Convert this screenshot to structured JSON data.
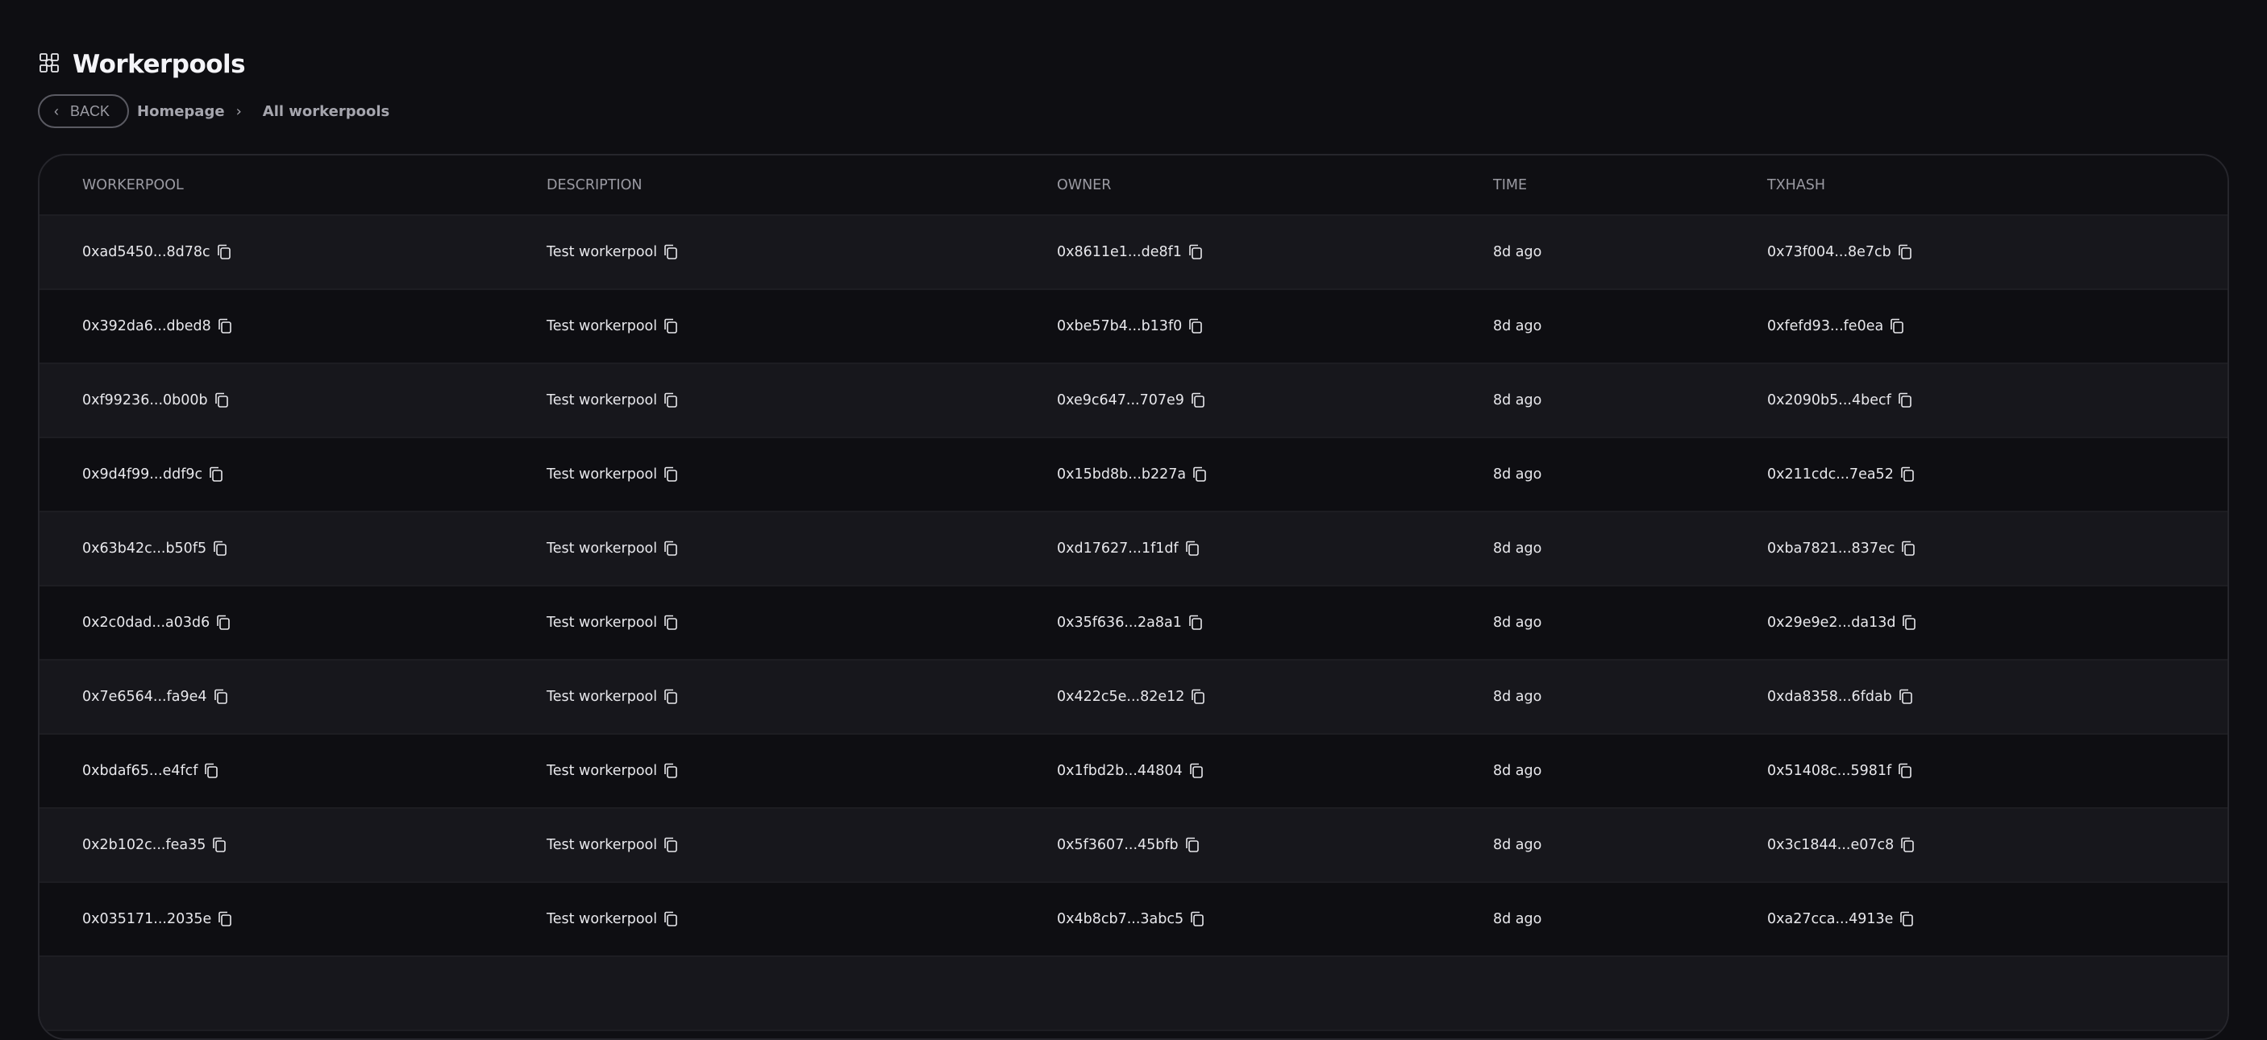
{
  "page": {
    "title": "Workerpools",
    "icon": "workerpool-icon"
  },
  "breadcrumb": {
    "back_label": "BACK",
    "items": [
      "Homepage",
      "All workerpools"
    ]
  },
  "table": {
    "columns": [
      "WORKERPOOL",
      "DESCRIPTION",
      "OWNER",
      "TIME",
      "TXHASH"
    ],
    "rows": [
      [
        "0xad5450...8d78c",
        "Test workerpool",
        "0x8611e1...de8f1",
        "8d ago",
        "0x73f004...8e7cb"
      ],
      [
        "0x392da6...dbed8",
        "Test workerpool",
        "0xbe57b4...b13f0",
        "8d ago",
        "0xfefd93...fe0ea"
      ],
      [
        "0xf99236...0b00b",
        "Test workerpool",
        "0xe9c647...707e9",
        "8d ago",
        "0x2090b5...4becf"
      ],
      [
        "0x9d4f99...ddf9c",
        "Test workerpool",
        "0x15bd8b...b227a",
        "8d ago",
        "0x211cdc...7ea52"
      ],
      [
        "0x63b42c...b50f5",
        "Test workerpool",
        "0xd17627...1f1df",
        "8d ago",
        "0xba7821...837ec"
      ],
      [
        "0x2c0dad...a03d6",
        "Test workerpool",
        "0x35f636...2a8a1",
        "8d ago",
        "0x29e9e2...da13d"
      ],
      [
        "0x7e6564...fa9e4",
        "Test workerpool",
        "0x422c5e...82e12",
        "8d ago",
        "0xda8358...6fdab"
      ],
      [
        "0xbdaf65...e4fcf",
        "Test workerpool",
        "0x1fbd2b...44804",
        "8d ago",
        "0x51408c...5981f"
      ],
      [
        "0x2b102c...fea35",
        "Test workerpool",
        "0x5f3607...45bfb",
        "8d ago",
        "0x3c1844...e07c8"
      ],
      [
        "0x035171...2035e",
        "Test workerpool",
        "0x4b8cb7...3abc5",
        "8d ago",
        "0xa27cca...4913e"
      ]
    ]
  }
}
